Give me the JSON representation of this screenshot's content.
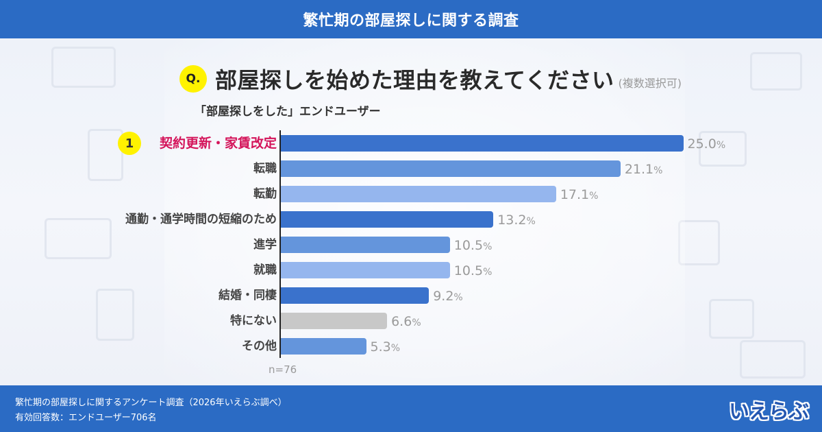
{
  "header": {
    "title": "繁忙期の部屋探しに関する調査"
  },
  "question": {
    "badge": "Q.",
    "text": "部屋探しを始めた理由を教えてください",
    "note": "(複数選択可)"
  },
  "subtitle": "「部屋探しをした」エンドユーザー",
  "rank_badge": "1",
  "rows": [
    {
      "label": "契約更新・家賃改定",
      "value": "25.0",
      "pct": "%",
      "color": "#3a72cc"
    },
    {
      "label": "転職",
      "value": "21.1",
      "pct": "%",
      "color": "#6495dc"
    },
    {
      "label": "転勤",
      "value": "17.1",
      "pct": "%",
      "color": "#95b6ee"
    },
    {
      "label": "通勤・通学時間の短縮のため",
      "value": "13.2",
      "pct": "%",
      "color": "#3a72cc"
    },
    {
      "label": "進学",
      "value": "10.5",
      "pct": "%",
      "color": "#6495dc"
    },
    {
      "label": "就職",
      "value": "10.5",
      "pct": "%",
      "color": "#95b6ee"
    },
    {
      "label": "結婚・同棲",
      "value": "9.2",
      "pct": "%",
      "color": "#3a72cc"
    },
    {
      "label": "特にない",
      "value": "6.6",
      "pct": "%",
      "color": "#c8c8c8"
    },
    {
      "label": "その他",
      "value": "5.3",
      "pct": "%",
      "color": "#6495dc"
    }
  ],
  "n_label": "n=76",
  "footer": {
    "line1": "繁忙期の部屋探しに関するアンケート調査（2026年いえらぶ調べ）",
    "line2": "有効回答数：エンドユーザー706名",
    "logo": "いえらぶ"
  },
  "chart_data": {
    "type": "bar",
    "orientation": "horizontal",
    "title": "部屋探しを始めた理由を教えてください（複数選択可）",
    "subtitle": "「部屋探しをした」エンドユーザー",
    "categories": [
      "契約更新・家賃改定",
      "転職",
      "転勤",
      "通勤・通学時間の短縮のため",
      "進学",
      "就職",
      "結婚・同棲",
      "特にない",
      "その他"
    ],
    "values": [
      25.0,
      21.1,
      17.1,
      13.2,
      10.5,
      10.5,
      9.2,
      6.6,
      5.3
    ],
    "unit": "%",
    "xlabel": "",
    "ylabel": "",
    "n": 76,
    "grid": false,
    "legend": "none"
  }
}
